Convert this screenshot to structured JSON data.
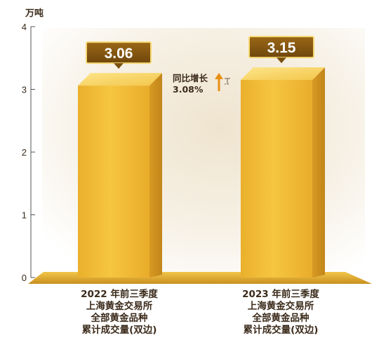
{
  "chart_data": {
    "type": "bar",
    "ylabel": "万吨",
    "ylim": [
      0,
      4
    ],
    "yticks": [
      "0",
      "1",
      "2",
      "3",
      "4"
    ],
    "categories": [
      [
        "2022 年前三季度",
        "上海黄金交易所",
        "全部黄金品种",
        "累计成交量(双边)"
      ],
      [
        "2023 年前三季度",
        "上海黄金交易所",
        "全部黄金品种",
        "累计成交量(双边)"
      ]
    ],
    "values": [
      3.06,
      3.15
    ],
    "data_labels": [
      "3.06",
      "3.15"
    ],
    "annotation": {
      "label": "同比增长",
      "value": "3.08%"
    },
    "grid": false,
    "colors": {
      "bar": "#f2b833",
      "bar_side": "#d69a22",
      "label_box": "#8a5a10",
      "text": "#3a2a1a",
      "floor": "#e0a92a"
    }
  }
}
